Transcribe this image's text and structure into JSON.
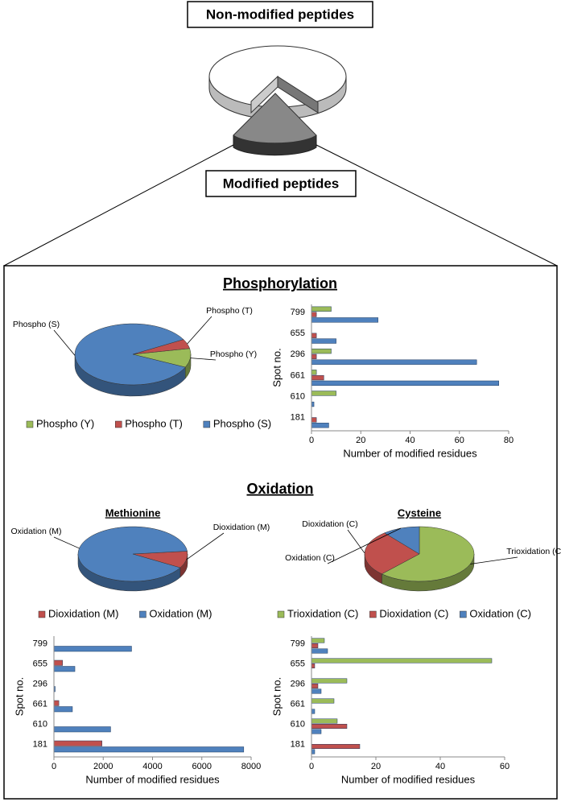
{
  "header": {
    "top": "Non-modified peptides",
    "bottom": "Modified peptides",
    "section1": "Phosphorylation",
    "section2": "Oxidation"
  },
  "chart_data": [
    {
      "type": "pie",
      "categories": [
        "Phospho (Y)",
        "Phospho (T)",
        "Phospho (S)"
      ],
      "values": [
        10,
        5,
        85
      ],
      "colors": [
        "#9bbb59",
        "#c0504d",
        "#4f81bd"
      ]
    },
    {
      "type": "bar",
      "categories": [
        "181",
        "610",
        "661",
        "296",
        "655",
        "799"
      ],
      "series": [
        {
          "color": "#9bbb59",
          "values": [
            0,
            10,
            2,
            8,
            0,
            8
          ]
        },
        {
          "color": "#c0504d",
          "values": [
            2,
            0,
            5,
            2,
            2,
            2
          ]
        },
        {
          "color": "#4f81bd",
          "values": [
            7,
            1,
            76,
            67,
            10,
            27
          ]
        }
      ],
      "xlim": [
        0,
        80
      ],
      "xticks": [
        0,
        20,
        40,
        60,
        80
      ],
      "xlabel": "Number of modified residues",
      "ylabel": "Spot no."
    },
    {
      "type": "pie",
      "title": "Methionine",
      "categories": [
        "Dioxidation (M)",
        "Oxidation (M)"
      ],
      "values": [
        10,
        90
      ],
      "colors": [
        "#c0504d",
        "#4f81bd"
      ]
    },
    {
      "type": "bar",
      "categories": [
        "181",
        "610",
        "661",
        "296",
        "655",
        "799"
      ],
      "series": [
        {
          "color": "#c0504d",
          "values": [
            1950,
            0,
            200,
            0,
            350,
            0
          ]
        },
        {
          "color": "#4f81bd",
          "values": [
            7700,
            2300,
            750,
            50,
            850,
            3150
          ]
        }
      ],
      "xlim": [
        0,
        8000
      ],
      "xticks": [
        0,
        2000,
        4000,
        6000,
        8000
      ],
      "xlabel": "Number of modified residues",
      "ylabel": "Spot no."
    },
    {
      "type": "pie",
      "title": "Cysteine",
      "categories": [
        "Trioxidation (C)",
        "Dioxidation (C)",
        "Oxidation (C)"
      ],
      "values": [
        62,
        27,
        11
      ],
      "colors": [
        "#9bbb59",
        "#c0504d",
        "#4f81bd"
      ]
    },
    {
      "type": "bar",
      "categories": [
        "181",
        "610",
        "661",
        "296",
        "655",
        "799"
      ],
      "series": [
        {
          "color": "#9bbb59",
          "values": [
            0,
            8,
            7,
            11,
            56,
            4
          ]
        },
        {
          "color": "#c0504d",
          "values": [
            15,
            11,
            0,
            2,
            1,
            2
          ]
        },
        {
          "color": "#4f81bd",
          "values": [
            1,
            3,
            1,
            3,
            0,
            5
          ]
        }
      ],
      "xlim": [
        0,
        60
      ],
      "xticks": [
        0,
        20,
        40,
        60
      ],
      "xlabel": "Number of modified residues",
      "ylabel": "Spot no."
    }
  ]
}
